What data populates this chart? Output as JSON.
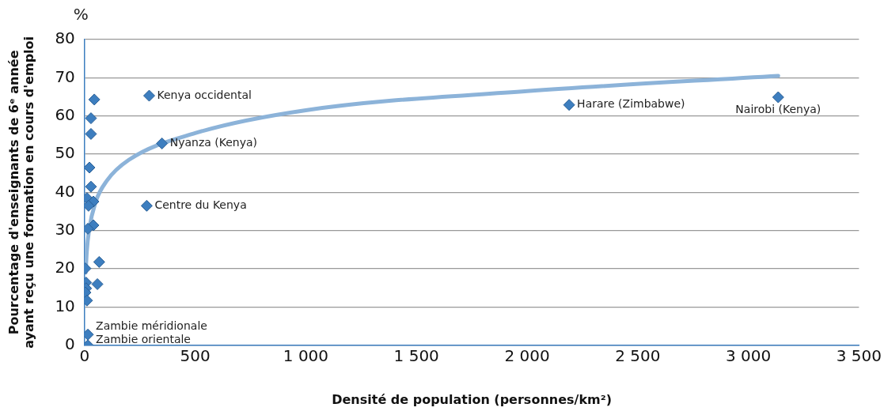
{
  "chart_data": {
    "type": "scatter",
    "xlabel": "Densité de population (personnes/km²)",
    "ylabel": [
      "Pourcentage d'enseignants de 6ᵉ année",
      "ayant reçu une formation en cours d'emploi"
    ],
    "series": [
      {
        "type": "scatter",
        "marker": "diamond",
        "color": "#3d7ebf",
        "x": [
          44,
          29,
          29,
          22,
          29,
          11,
          40,
          18,
          40,
          15,
          66,
          4,
          7,
          58,
          7,
          4,
          11,
          15,
          15,
          292,
          350,
          281,
          2190,
          3135
        ],
        "values": [
          64.3,
          59.4,
          55.3,
          46.5,
          41.5,
          38.5,
          37.6,
          36.5,
          31.4,
          30.5,
          21.8,
          20.1,
          16.4,
          16,
          14.9,
          13.8,
          11.7,
          2.8,
          0,
          65.3,
          52.8,
          36.5,
          62.9,
          64.9
        ]
      },
      {
        "type": "line",
        "marker": "none",
        "color": "#8cb3d9",
        "x": [
          5,
          10,
          20,
          50,
          100,
          200,
          500,
          1000,
          2000,
          3135
        ],
        "values": [
          19,
          24.5,
          30,
          37.5,
          43,
          48.5,
          55.5,
          61.5,
          66.5,
          70.5
        ]
      }
    ],
    "xlim": [
      0,
      3500
    ],
    "xticks": [
      0,
      500,
      {
        "value": 1000,
        "label": "1 000"
      },
      {
        "value": 1500,
        "label": "1 500"
      },
      {
        "value": 2000,
        "label": "2 000"
      },
      {
        "value": 2500,
        "label": "2 500"
      },
      {
        "value": 3000,
        "label": "3 000"
      },
      {
        "value": 3500,
        "label": "3 500"
      }
    ],
    "ylim": [
      0,
      80
    ],
    "yticks": [
      0,
      10,
      20,
      30,
      40,
      50,
      60,
      70,
      80
    ],
    "grid": "y",
    "annotations": [
      "%",
      {
        "text": "Kenya occidental",
        "x": 292,
        "y": 65.3
      },
      {
        "text": "Nyanza (Kenya)",
        "x": 350,
        "y": 52.8
      },
      {
        "text": "Centre du Kenya",
        "x": 281,
        "y": 36.5
      },
      {
        "text": "Harare (Zimbabwe)",
        "x": 2190,
        "y": 62.9
      },
      {
        "text": "Nairobi (Kenya)",
        "x": 3135,
        "y": 64.9
      },
      {
        "text": "Zambie méridionale",
        "x": 15,
        "y": 2.8
      },
      {
        "text": "Zambie orientale",
        "x": 15,
        "y": 0
      }
    ]
  }
}
